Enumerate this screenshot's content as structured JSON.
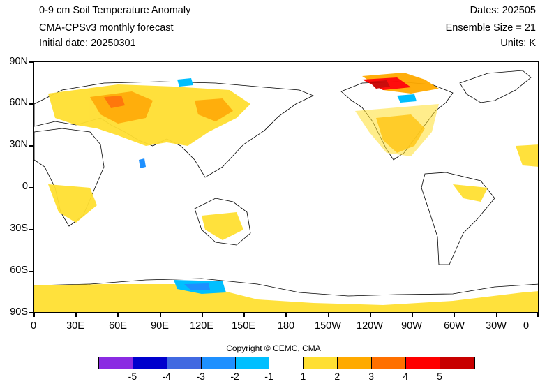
{
  "header": {
    "title": "0-9 cm Soil Temperature Anomaly",
    "model": "CMA-CPSv3 monthly forecast",
    "initial_date": "Initial date: 20250301",
    "dates": "Dates: 202505",
    "ensemble": "Ensemble Size = 21",
    "units": "Units: K"
  },
  "axes": {
    "y_labels": [
      "90N",
      "60N",
      "30N",
      "0",
      "30S",
      "60S",
      "90S"
    ],
    "x_labels": [
      "0",
      "30E",
      "60E",
      "90E",
      "120E",
      "150E",
      "180",
      "150W",
      "120W",
      "90W",
      "60W",
      "30W",
      "0"
    ]
  },
  "copyright": "Copyright © CEMC, CMA",
  "colorbar": {
    "colors": [
      "#8a2be2",
      "#0000cd",
      "#4169e1",
      "#1e90ff",
      "#00bfff",
      "#ffffff",
      "#ffdf32",
      "#ffaa00",
      "#ff7000",
      "#ff0000",
      "#c80000"
    ],
    "labels": [
      "-5",
      "-4",
      "-3",
      "-2",
      "-1",
      "1",
      "2",
      "3",
      "4",
      "5"
    ]
  }
}
